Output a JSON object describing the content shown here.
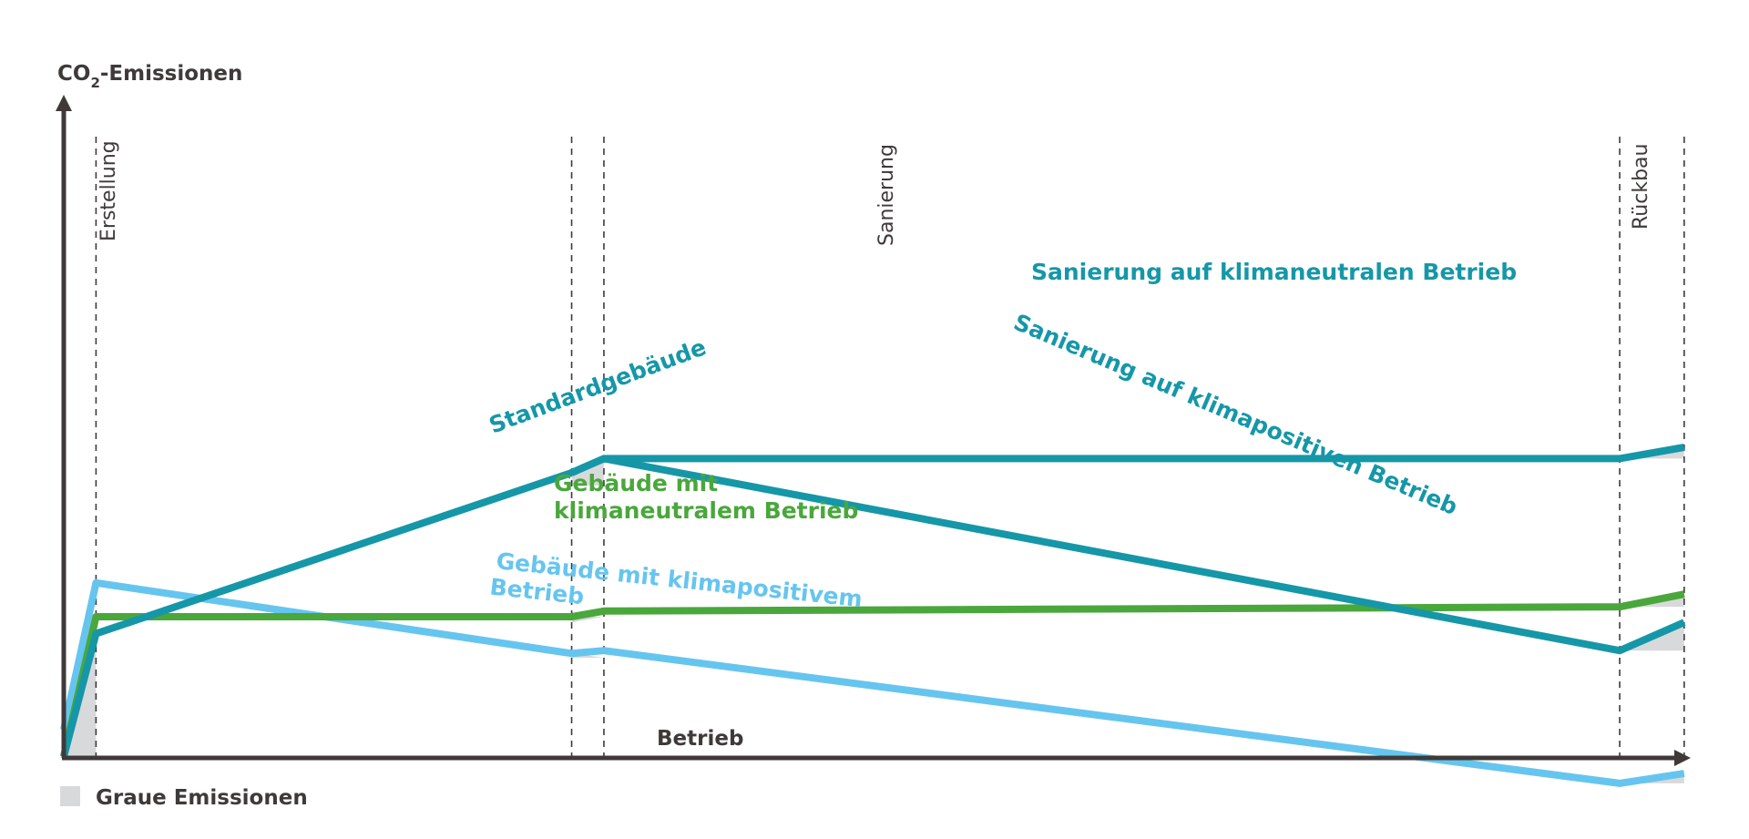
{
  "chart_data": {
    "type": "line",
    "title": "",
    "ylabel_main": "CO",
    "ylabel_sub": "2",
    "ylabel_rest": "-Emissionen",
    "xlabel": "Betrieb",
    "phases": [
      "Erstellung",
      "Sanierung",
      "Rückbau"
    ],
    "colors": {
      "axis": "#3f3a39",
      "teal": "#1597a8",
      "green": "#4aa73c",
      "lightblue": "#66c5ef",
      "grey": "#d8d9db"
    },
    "series": [
      {
        "key": "standard",
        "label": "Standardgebäude",
        "color": "#1597a8",
        "points": [
          [
            0,
            0.5
          ],
          [
            2,
            44
          ],
          [
            31.5,
            101
          ]
        ]
      },
      {
        "key": "san_neutral",
        "label": "Sanierung auf klimaneutralen Betrieb",
        "color": "#1597a8",
        "points": [
          [
            31.5,
            101
          ],
          [
            33.5,
            106
          ],
          [
            96.5,
            106
          ],
          [
            100.5,
            110
          ]
        ]
      },
      {
        "key": "san_positiv",
        "label": "Sanierung auf klimapositiven Betrieb",
        "color": "#1597a8",
        "points": [
          [
            31.5,
            101
          ],
          [
            33.5,
            106
          ],
          [
            96.5,
            38
          ],
          [
            100.5,
            48
          ]
        ]
      },
      {
        "key": "neutral",
        "label_lines": [
          "Gebäude mit",
          "klimaneutralem Betrieb"
        ],
        "color": "#4aa73c",
        "points": [
          [
            0,
            0.5
          ],
          [
            2,
            50
          ],
          [
            31.5,
            50
          ],
          [
            33.5,
            52
          ],
          [
            96.5,
            53.5
          ],
          [
            100.5,
            58
          ]
        ]
      },
      {
        "key": "positiv",
        "label_lines": [
          "Gebäude mit klimapositivem",
          "Betrieb"
        ],
        "color": "#66c5ef",
        "points": [
          [
            0,
            10
          ],
          [
            2,
            62
          ],
          [
            31.5,
            37
          ],
          [
            33.5,
            38
          ],
          [
            96.5,
            -9
          ],
          [
            100.5,
            -5.5
          ]
        ]
      }
    ],
    "grey_emissions": [
      [
        [
          0,
          0
        ],
        [
          2,
          44
        ],
        [
          2,
          0
        ]
      ],
      [
        [
          31.5,
          101
        ],
        [
          33.5,
          106
        ],
        [
          33.5,
          96.5
        ],
        [
          31.5,
          96.5
        ]
      ],
      [
        [
          31.5,
          50
        ],
        [
          33.5,
          50
        ],
        [
          31.5,
          48
        ]
      ],
      [
        [
          31.5,
          37
        ],
        [
          33.5,
          35.5
        ],
        [
          31.5,
          35.5
        ]
      ],
      [
        [
          96.5,
          106
        ],
        [
          100.5,
          110
        ],
        [
          100.5,
          106
        ]
      ],
      [
        [
          96.5,
          53.5
        ],
        [
          100.5,
          58
        ],
        [
          100.5,
          53.5
        ]
      ],
      [
        [
          96.5,
          38
        ],
        [
          100.5,
          48
        ],
        [
          100.5,
          38
        ]
      ],
      [
        [
          96.5,
          -9
        ],
        [
          100.5,
          -5.5
        ],
        [
          100.5,
          -9
        ]
      ]
    ],
    "phase_boundaries": [
      2,
      31.5,
      33.5,
      96.5,
      100.5
    ],
    "xlim": [
      0,
      102
    ],
    "ylim": [
      -12,
      135
    ],
    "grid": false,
    "legend": {
      "label": "Graue Emissionen",
      "placement": "bottom-left"
    }
  }
}
